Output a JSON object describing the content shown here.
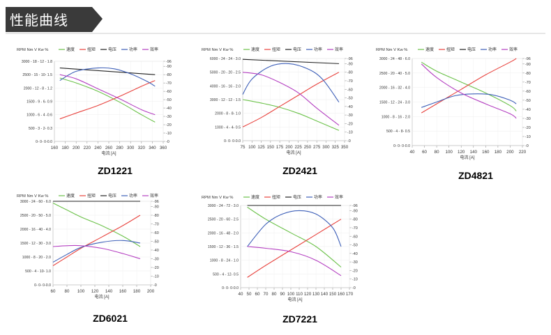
{
  "page_title": "性能曲线",
  "colors": {
    "banner": "#3a3a3a",
    "speed": "#6cc24a",
    "torque": "#e8423d",
    "voltage": "#222222",
    "power": "#3d5fb8",
    "efficiency": "#b43fc1"
  },
  "legend": {
    "units": "RPM  Nm  V  Kw  %",
    "speed": "速度",
    "torque": "扭矩",
    "voltage": "电压",
    "power": "功率",
    "efficiency": "效率"
  },
  "chart_data": [
    {
      "model": "ZD1221",
      "type": "line",
      "xlabel": "电流 [A]",
      "xticks": [
        160,
        180,
        200,
        220,
        240,
        260,
        280,
        300,
        320,
        340,
        360
      ],
      "xlim": [
        160,
        360
      ],
      "left_ticks": [
        "0- 0- 0-0.0",
        "500 - 3 - 2- 0.3",
        "1000 - 6 - 4 -0.6",
        "1500 - 9 - 6- 0.9",
        "2000 - 12 - 8 - 1.2",
        "2500 - 15 - 10- 1.5",
        "3000 - 18 - 12 - 1.8"
      ],
      "right_ticks": [
        0,
        10,
        20,
        30,
        40,
        50,
        60,
        70,
        80,
        90,
        96
      ],
      "rlim": [
        0,
        96
      ],
      "series": [
        {
          "key": "speed",
          "x": [
            170,
            200,
            240,
            280,
            320,
            345
          ],
          "y": [
            76,
            70,
            60,
            47,
            32,
            23
          ]
        },
        {
          "key": "torque",
          "x": [
            170,
            200,
            240,
            280,
            320,
            345
          ],
          "y": [
            27,
            34,
            43,
            54,
            66,
            73
          ]
        },
        {
          "key": "voltage",
          "x": [
            170,
            345
          ],
          "y": [
            88,
            80
          ]
        },
        {
          "key": "power",
          "x": [
            170,
            200,
            240,
            270,
            300,
            330,
            345
          ],
          "y": [
            73,
            84,
            88,
            87,
            81,
            72,
            66
          ]
        },
        {
          "key": "efficiency",
          "x": [
            170,
            200,
            240,
            280,
            320,
            345
          ],
          "y": [
            80,
            75,
            63,
            51,
            38,
            32
          ]
        }
      ]
    },
    {
      "model": "ZD2421",
      "type": "line",
      "xlabel": "电流 [A]",
      "xticks": [
        75,
        100,
        125,
        150,
        175,
        200,
        225,
        250,
        275,
        300,
        325,
        350
      ],
      "xlim": [
        75,
        350
      ],
      "left_ticks": [
        "0- 0- 0-0.0",
        "1000 - 4 - 4- 0.5",
        "2000 - 8 - 8- 1.0",
        "3000 - 12 - 12 - 1.5",
        "4000 - 16 - 16 - 2.0",
        "5000 - 20 - 20 - 2.5",
        "6000 - 24 - 24 - 3.0"
      ],
      "right_ticks": [
        0,
        10,
        20,
        30,
        40,
        50,
        60,
        70,
        80,
        90,
        96
      ],
      "rlim": [
        0,
        96
      ],
      "series": [
        {
          "key": "speed",
          "x": [
            75,
            125,
            175,
            225,
            275,
            335
          ],
          "y": [
            48,
            44,
            39,
            32,
            23,
            12
          ]
        },
        {
          "key": "torque",
          "x": [
            75,
            125,
            175,
            225,
            275,
            335
          ],
          "y": [
            16,
            27,
            40,
            53,
            66,
            80
          ]
        },
        {
          "key": "voltage",
          "x": [
            75,
            335
          ],
          "y": [
            95,
            90
          ]
        },
        {
          "key": "power",
          "x": [
            75,
            100,
            150,
            200,
            250,
            290,
            335
          ],
          "y": [
            54,
            72,
            87,
            90,
            84,
            72,
            45
          ]
        },
        {
          "key": "efficiency",
          "x": [
            75,
            125,
            175,
            225,
            275,
            335
          ],
          "y": [
            80,
            77,
            68,
            56,
            38,
            18
          ]
        }
      ]
    },
    {
      "model": "ZD4821",
      "type": "line",
      "xlabel": "电流 [A]",
      "xticks": [
        40,
        60,
        80,
        100,
        120,
        140,
        160,
        180,
        200,
        220
      ],
      "xlim": [
        40,
        220
      ],
      "left_ticks": [
        "0- 0- 0-0.0",
        "500 - 4 - 8- 0.5",
        "1000 - 8 - 16 - 2.0",
        "1500 - 12 - 24 - 3.0",
        "2000 - 16 - 32 - 4.0",
        "2500 - 20 - 40 - 5.0",
        "3000 - 24 - 48 - 6.0"
      ],
      "right_ticks": [
        0,
        10,
        20,
        30,
        40,
        50,
        60,
        70,
        80,
        90,
        96
      ],
      "rlim": [
        0,
        96
      ],
      "series": [
        {
          "key": "speed",
          "x": [
            55,
            80,
            120,
            160,
            200,
            210
          ],
          "y": [
            92,
            82,
            70,
            58,
            44,
            38
          ]
        },
        {
          "key": "torque",
          "x": [
            55,
            80,
            120,
            160,
            200,
            210
          ],
          "y": [
            36,
            46,
            62,
            78,
            92,
            96
          ]
        },
        {
          "key": "power",
          "x": [
            55,
            80,
            110,
            140,
            170,
            200,
            210
          ],
          "y": [
            42,
            48,
            55,
            57,
            56,
            50,
            46
          ]
        },
        {
          "key": "efficiency",
          "x": [
            55,
            80,
            120,
            160,
            200,
            210
          ],
          "y": [
            90,
            75,
            58,
            46,
            35,
            30
          ]
        }
      ]
    },
    {
      "model": "ZD6021",
      "type": "line",
      "xlabel": "电流 [A]",
      "xticks": [
        60,
        80,
        100,
        120,
        140,
        160,
        180,
        200
      ],
      "xlim": [
        60,
        200
      ],
      "left_ticks": [
        "0- 0- 0-0.0",
        "500 - 4 - 10- 1.0",
        "1000 - 8 - 20 - 2.0",
        "1500 - 12 - 30 - 3.0",
        "2000 - 16 - 40 - 4.0",
        "2500 - 20 - 50 - 5.0",
        "3000 - 24 - 60 - 6.0"
      ],
      "right_ticks": [
        0,
        10,
        20,
        30,
        40,
        50,
        60,
        70,
        80,
        90,
        96
      ],
      "rlim": [
        0,
        96
      ],
      "series": [
        {
          "key": "speed",
          "x": [
            60,
            80,
            100,
            130,
            160,
            185
          ],
          "y": [
            94,
            86,
            78,
            68,
            56,
            44
          ]
        },
        {
          "key": "torque",
          "x": [
            60,
            80,
            100,
            130,
            160,
            185
          ],
          "y": [
            22,
            32,
            42,
            55,
            68,
            80
          ]
        },
        {
          "key": "voltage",
          "x": [
            60,
            185
          ],
          "y": [
            96,
            96
          ]
        },
        {
          "key": "power",
          "x": [
            60,
            80,
            100,
            130,
            160,
            185
          ],
          "y": [
            26,
            35,
            43,
            49,
            51,
            48
          ]
        },
        {
          "key": "efficiency",
          "x": [
            60,
            80,
            100,
            130,
            160,
            185
          ],
          "y": [
            44,
            45,
            45,
            42,
            36,
            30
          ]
        }
      ]
    },
    {
      "model": "ZD7221",
      "type": "line",
      "xlabel": "电流 [A]",
      "xticks": [
        40,
        50,
        60,
        70,
        80,
        90,
        100,
        110,
        120,
        130,
        140,
        150,
        160,
        170
      ],
      "xlim": [
        40,
        170
      ],
      "left_ticks": [
        "0- 0- 0-0.0",
        "500 - 4 - 12- 0.5",
        "1000 - 8 - 24 - 1.0",
        "1500 - 12 - 36 - 1.5",
        "2000 - 16 - 48 - 2.0",
        "2500 - 20 - 60 - 2.5",
        "3000 - 24 - 72 - 3.0"
      ],
      "right_ticks": [
        0,
        10,
        20,
        30,
        40,
        50,
        60,
        70,
        80,
        90,
        96
      ],
      "rlim": [
        0,
        96
      ],
      "series": [
        {
          "key": "speed",
          "x": [
            48,
            70,
            100,
            130,
            160
          ],
          "y": [
            94,
            80,
            64,
            48,
            24
          ]
        },
        {
          "key": "torque",
          "x": [
            48,
            70,
            100,
            130,
            160
          ],
          "y": [
            12,
            26,
            44,
            62,
            80
          ]
        },
        {
          "key": "voltage",
          "x": [
            48,
            160
          ],
          "y": [
            96,
            96
          ]
        },
        {
          "key": "power",
          "x": [
            48,
            70,
            90,
            110,
            130,
            150,
            160
          ],
          "y": [
            48,
            74,
            86,
            90,
            86,
            70,
            48
          ]
        },
        {
          "key": "efficiency",
          "x": [
            48,
            70,
            100,
            130,
            160
          ],
          "y": [
            48,
            46,
            42,
            32,
            14
          ]
        }
      ]
    }
  ]
}
